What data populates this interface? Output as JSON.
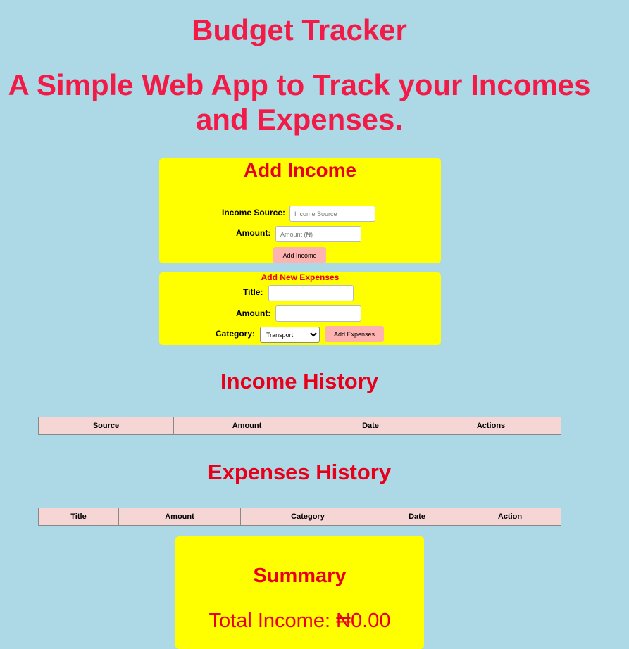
{
  "header": {
    "title": "Budget Tracker",
    "subtitle_line1": "A Simple Web App to Track your Incomes",
    "subtitle_line2": "and Expenses."
  },
  "income_form": {
    "heading": "Add Income",
    "source_label": "Income Source:",
    "source_placeholder": "Income Source",
    "amount_label": "Amount:",
    "amount_placeholder": "Amount (₦)",
    "button_label": "Add Income"
  },
  "expense_form": {
    "heading": "Add New Expenses",
    "title_label": "Title:",
    "amount_label": "Amount:",
    "category_label": "Category:",
    "category_selected": "Transport",
    "button_label": "Add Expenses"
  },
  "income_history": {
    "heading": "Income History",
    "columns": [
      "Source",
      "Amount",
      "Date",
      "Actions"
    ]
  },
  "expenses_history": {
    "heading": "Expenses History",
    "columns": [
      "Title",
      "Amount",
      "Category",
      "Date",
      "Action"
    ]
  },
  "summary": {
    "heading": "Summary",
    "total_income": "Total Income: ₦0.00"
  },
  "colors": {
    "background": "#add8e6",
    "title": "#f21a47",
    "heading": "#e8001a",
    "card": "#ffff00",
    "button": "#ffb3b0",
    "table_header": "#f6d5d5"
  }
}
